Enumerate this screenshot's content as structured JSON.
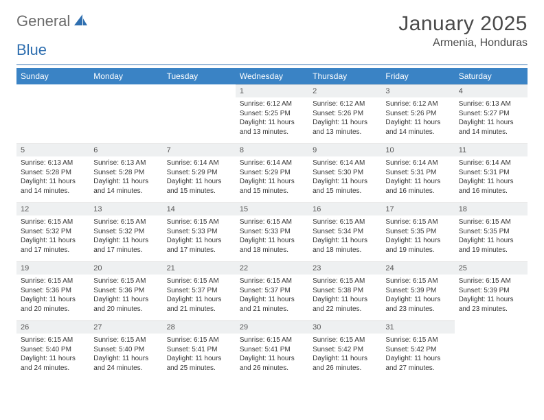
{
  "logo": {
    "text1": "General",
    "text2": "Blue"
  },
  "title": "January 2025",
  "location": "Armenia, Honduras",
  "colors": {
    "header_bg": "#3a83c5",
    "header_text": "#ffffff",
    "daynum_bg": "#eef0f1",
    "divider": "#2f6fb0",
    "logo_gray": "#6b6b6b",
    "logo_blue": "#2f6fb0",
    "text": "#353535"
  },
  "weekdays": [
    "Sunday",
    "Monday",
    "Tuesday",
    "Wednesday",
    "Thursday",
    "Friday",
    "Saturday"
  ],
  "weeks": [
    [
      {
        "n": "",
        "sr": "",
        "ss": "",
        "dh": "",
        "dm": ""
      },
      {
        "n": "",
        "sr": "",
        "ss": "",
        "dh": "",
        "dm": ""
      },
      {
        "n": "",
        "sr": "",
        "ss": "",
        "dh": "",
        "dm": ""
      },
      {
        "n": "1",
        "sr": "6:12 AM",
        "ss": "5:25 PM",
        "dh": "11",
        "dm": "13"
      },
      {
        "n": "2",
        "sr": "6:12 AM",
        "ss": "5:26 PM",
        "dh": "11",
        "dm": "13"
      },
      {
        "n": "3",
        "sr": "6:12 AM",
        "ss": "5:26 PM",
        "dh": "11",
        "dm": "14"
      },
      {
        "n": "4",
        "sr": "6:13 AM",
        "ss": "5:27 PM",
        "dh": "11",
        "dm": "14"
      }
    ],
    [
      {
        "n": "5",
        "sr": "6:13 AM",
        "ss": "5:28 PM",
        "dh": "11",
        "dm": "14"
      },
      {
        "n": "6",
        "sr": "6:13 AM",
        "ss": "5:28 PM",
        "dh": "11",
        "dm": "14"
      },
      {
        "n": "7",
        "sr": "6:14 AM",
        "ss": "5:29 PM",
        "dh": "11",
        "dm": "15"
      },
      {
        "n": "8",
        "sr": "6:14 AM",
        "ss": "5:29 PM",
        "dh": "11",
        "dm": "15"
      },
      {
        "n": "9",
        "sr": "6:14 AM",
        "ss": "5:30 PM",
        "dh": "11",
        "dm": "15"
      },
      {
        "n": "10",
        "sr": "6:14 AM",
        "ss": "5:31 PM",
        "dh": "11",
        "dm": "16"
      },
      {
        "n": "11",
        "sr": "6:14 AM",
        "ss": "5:31 PM",
        "dh": "11",
        "dm": "16"
      }
    ],
    [
      {
        "n": "12",
        "sr": "6:15 AM",
        "ss": "5:32 PM",
        "dh": "11",
        "dm": "17"
      },
      {
        "n": "13",
        "sr": "6:15 AM",
        "ss": "5:32 PM",
        "dh": "11",
        "dm": "17"
      },
      {
        "n": "14",
        "sr": "6:15 AM",
        "ss": "5:33 PM",
        "dh": "11",
        "dm": "17"
      },
      {
        "n": "15",
        "sr": "6:15 AM",
        "ss": "5:33 PM",
        "dh": "11",
        "dm": "18"
      },
      {
        "n": "16",
        "sr": "6:15 AM",
        "ss": "5:34 PM",
        "dh": "11",
        "dm": "18"
      },
      {
        "n": "17",
        "sr": "6:15 AM",
        "ss": "5:35 PM",
        "dh": "11",
        "dm": "19"
      },
      {
        "n": "18",
        "sr": "6:15 AM",
        "ss": "5:35 PM",
        "dh": "11",
        "dm": "19"
      }
    ],
    [
      {
        "n": "19",
        "sr": "6:15 AM",
        "ss": "5:36 PM",
        "dh": "11",
        "dm": "20"
      },
      {
        "n": "20",
        "sr": "6:15 AM",
        "ss": "5:36 PM",
        "dh": "11",
        "dm": "20"
      },
      {
        "n": "21",
        "sr": "6:15 AM",
        "ss": "5:37 PM",
        "dh": "11",
        "dm": "21"
      },
      {
        "n": "22",
        "sr": "6:15 AM",
        "ss": "5:37 PM",
        "dh": "11",
        "dm": "21"
      },
      {
        "n": "23",
        "sr": "6:15 AM",
        "ss": "5:38 PM",
        "dh": "11",
        "dm": "22"
      },
      {
        "n": "24",
        "sr": "6:15 AM",
        "ss": "5:39 PM",
        "dh": "11",
        "dm": "23"
      },
      {
        "n": "25",
        "sr": "6:15 AM",
        "ss": "5:39 PM",
        "dh": "11",
        "dm": "23"
      }
    ],
    [
      {
        "n": "26",
        "sr": "6:15 AM",
        "ss": "5:40 PM",
        "dh": "11",
        "dm": "24"
      },
      {
        "n": "27",
        "sr": "6:15 AM",
        "ss": "5:40 PM",
        "dh": "11",
        "dm": "24"
      },
      {
        "n": "28",
        "sr": "6:15 AM",
        "ss": "5:41 PM",
        "dh": "11",
        "dm": "25"
      },
      {
        "n": "29",
        "sr": "6:15 AM",
        "ss": "5:41 PM",
        "dh": "11",
        "dm": "26"
      },
      {
        "n": "30",
        "sr": "6:15 AM",
        "ss": "5:42 PM",
        "dh": "11",
        "dm": "26"
      },
      {
        "n": "31",
        "sr": "6:15 AM",
        "ss": "5:42 PM",
        "dh": "11",
        "dm": "27"
      },
      {
        "n": "",
        "sr": "",
        "ss": "",
        "dh": "",
        "dm": ""
      }
    ]
  ]
}
